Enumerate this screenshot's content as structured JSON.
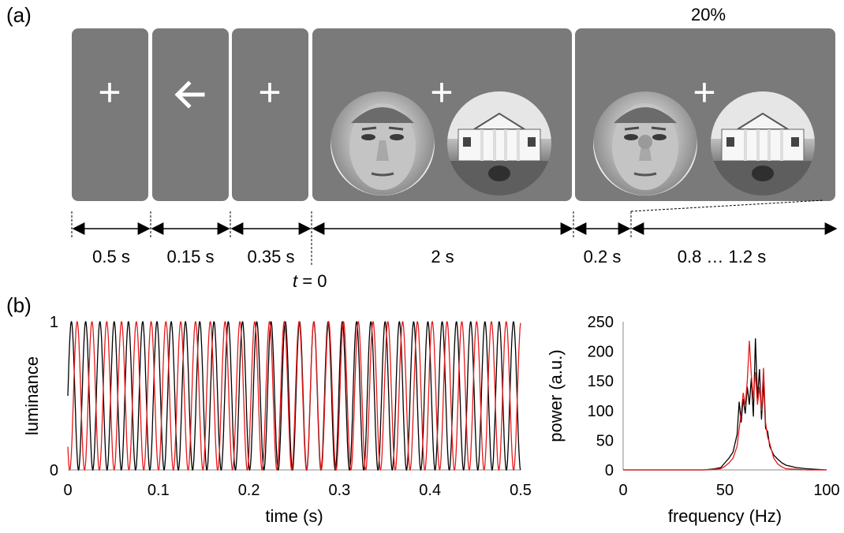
{
  "panel_a": {
    "label": "(a)",
    "percent_label": "20%",
    "fixation_symbol": "+",
    "cue_symbol": "🡐",
    "durations": [
      "0.5 s",
      "0.15 s",
      "0.35 s",
      "2 s",
      "0.2 s",
      "0.8 … 1.2 s"
    ],
    "t0_label": "= 0",
    "t0_var": "t",
    "colors": {
      "screen": "#7a7a7a",
      "symbol": "#ffffff"
    }
  },
  "panel_b": {
    "label": "(b)"
  },
  "chart_data": [
    {
      "type": "line",
      "xlabel": "time (s)",
      "ylabel": "luminance",
      "xlim": [
        0,
        0.5
      ],
      "ylim": [
        0,
        1
      ],
      "xticks": [
        "0",
        "0.1",
        "0.2",
        "0.3",
        "0.4",
        "0.5"
      ],
      "yticks": [
        "0",
        "1"
      ],
      "series": [
        {
          "color": "#000000",
          "frequency_hz": 63.5,
          "phase": 0
        },
        {
          "color": "#e8191a",
          "frequency_hz": 61.2,
          "phase": 3.9
        }
      ]
    },
    {
      "type": "line",
      "xlabel": "frequency (Hz)",
      "ylabel": "power (a.u.)",
      "xlim": [
        0,
        100
      ],
      "ylim": [
        0,
        250
      ],
      "xticks": [
        "0",
        "50",
        "100"
      ],
      "yticks": [
        "0",
        "50",
        "100",
        "150",
        "200",
        "250"
      ],
      "series": [
        {
          "color": "#000000",
          "x": [
            0,
            40,
            45,
            48,
            50,
            52,
            54,
            56,
            57,
            58,
            59,
            60,
            61,
            62,
            63,
            64,
            65,
            66,
            67,
            68,
            69,
            70,
            71,
            72,
            74,
            76,
            78,
            80,
            85,
            90,
            100
          ],
          "y": [
            0,
            0,
            2,
            4,
            12,
            20,
            30,
            60,
            115,
            80,
            120,
            95,
            140,
            110,
            155,
            90,
            222,
            120,
            170,
            85,
            150,
            70,
            65,
            40,
            25,
            18,
            12,
            8,
            4,
            2,
            0
          ]
        },
        {
          "color": "#e8191a",
          "x": [
            0,
            40,
            45,
            48,
            50,
            52,
            54,
            56,
            57,
            58,
            59,
            60,
            61,
            62,
            63,
            64,
            65,
            66,
            67,
            68,
            69,
            70,
            71,
            72,
            74,
            76,
            78,
            80,
            85,
            90,
            100
          ],
          "y": [
            0,
            0,
            1,
            2,
            6,
            12,
            20,
            40,
            70,
            95,
            130,
            110,
            150,
            218,
            160,
            120,
            165,
            110,
            140,
            100,
            172,
            80,
            55,
            45,
            20,
            10,
            5,
            2,
            1,
            0,
            0
          ]
        }
      ]
    }
  ]
}
